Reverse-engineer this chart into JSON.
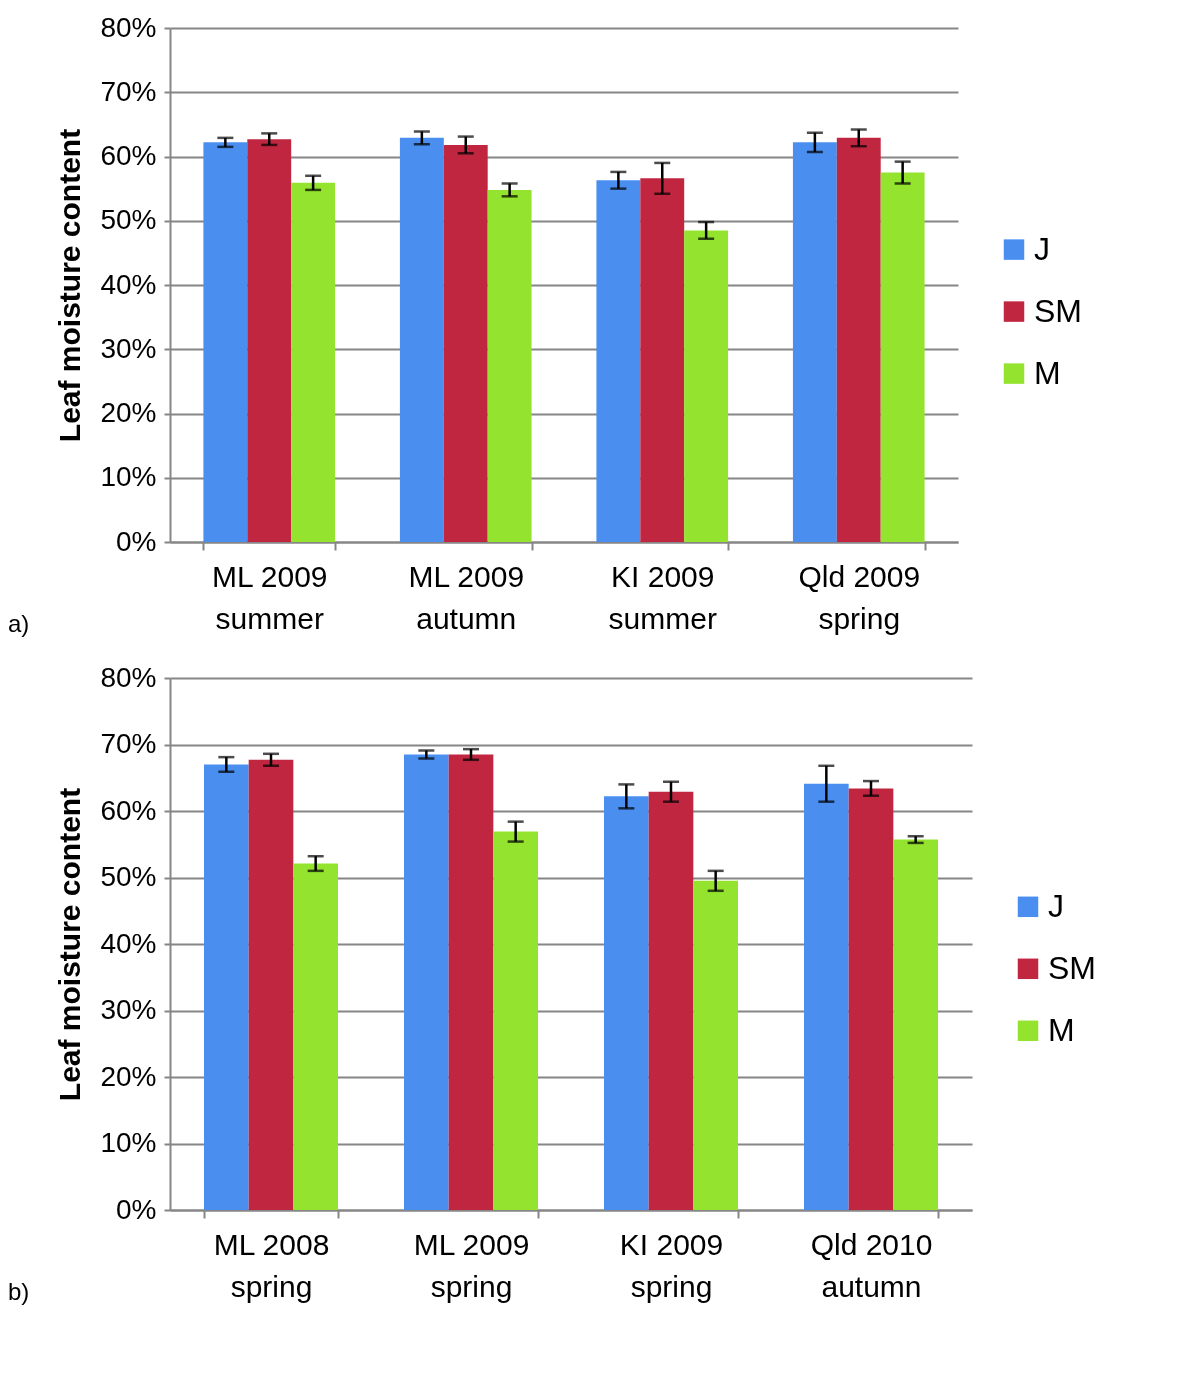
{
  "chart_data": [
    {
      "type": "bar",
      "ylabel": "Leaf moisture content",
      "categories": [
        "ML 2009 summer",
        "ML 2009 autumn",
        "KI 2009 summer",
        "Qld 2009 spring"
      ],
      "series": [
        {
          "name": "J",
          "color": "#4a8ff0",
          "values": [
            62.2,
            62.9,
            56.3,
            62.2
          ],
          "errors": [
            0.7,
            1.0,
            1.3,
            1.5
          ]
        },
        {
          "name": "SM",
          "color": "#c12641",
          "values": [
            62.7,
            61.8,
            56.6,
            62.9
          ],
          "errors": [
            0.9,
            1.3,
            2.4,
            1.3
          ]
        },
        {
          "name": "M",
          "color": "#93e32f",
          "values": [
            55.9,
            54.8,
            48.5,
            57.5
          ],
          "errors": [
            1.1,
            1.0,
            1.3,
            1.7
          ]
        }
      ],
      "ylim": [
        0,
        80
      ],
      "yticks": [
        {
          "value": 0,
          "label": "0%"
        },
        {
          "value": 10,
          "label": "10%"
        },
        {
          "value": 20,
          "label": "20%"
        },
        {
          "value": 30,
          "label": "30%"
        },
        {
          "value": 40,
          "label": "40%"
        },
        {
          "value": 50,
          "label": "50%"
        },
        {
          "value": 60,
          "label": "60%"
        },
        {
          "value": 70,
          "label": "70%"
        },
        {
          "value": 80,
          "label": "80%"
        }
      ],
      "grid": "y",
      "legend": "right",
      "annotations": [
        "a)"
      ]
    },
    {
      "type": "bar",
      "ylabel": "Leaf moisture content",
      "categories": [
        "ML 2008 spring",
        "ML 2009 spring",
        "KI 2009 spring",
        "Qld 2010 autumn"
      ],
      "series": [
        {
          "name": "J",
          "color": "#4a8ff0",
          "values": [
            67.0,
            68.5,
            62.2,
            64.1
          ],
          "errors": [
            1.1,
            0.6,
            1.8,
            2.7
          ]
        },
        {
          "name": "SM",
          "color": "#c12641",
          "values": [
            67.7,
            68.5,
            62.9,
            63.4
          ],
          "errors": [
            0.9,
            0.8,
            1.5,
            1.1
          ]
        },
        {
          "name": "M",
          "color": "#93e32f",
          "values": [
            52.1,
            56.9,
            49.5,
            55.7
          ],
          "errors": [
            1.1,
            1.5,
            1.5,
            0.5
          ]
        }
      ],
      "ylim": [
        0,
        80
      ],
      "yticks": [
        {
          "value": 0,
          "label": "0%"
        },
        {
          "value": 10,
          "label": "10%"
        },
        {
          "value": 20,
          "label": "20%"
        },
        {
          "value": 30,
          "label": "30%"
        },
        {
          "value": 40,
          "label": "40%"
        },
        {
          "value": 50,
          "label": "50%"
        },
        {
          "value": 60,
          "label": "60%"
        },
        {
          "value": 70,
          "label": "70%"
        },
        {
          "value": 80,
          "label": "80%"
        }
      ],
      "grid": "y",
      "legend": "right",
      "annotations": [
        "b)"
      ]
    }
  ]
}
